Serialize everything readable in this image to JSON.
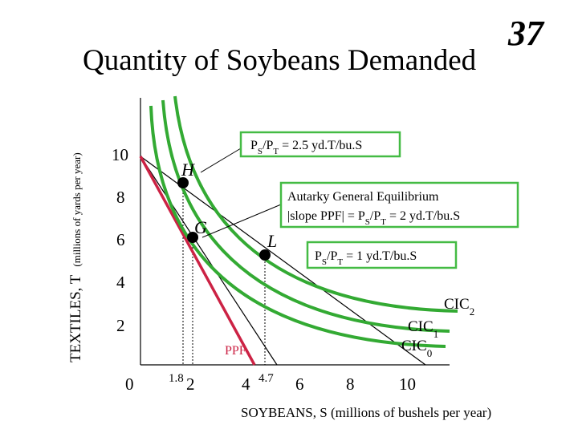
{
  "slide": {
    "title": "Quantity of Soybeans Demanded",
    "number": "37"
  },
  "axes": {
    "y_label_main": "TEXTILES, T",
    "y_label_unit": "(millions of yards per year)",
    "x_label": "SOYBEANS, S (millions of bushels per year)",
    "y_ticks": [
      "10",
      "8",
      "6",
      "4",
      "2",
      "0"
    ],
    "x_ticks": [
      "1.8",
      "2",
      "4",
      "4.7",
      "6",
      "8",
      "10"
    ]
  },
  "points": {
    "H": "H",
    "G": "G",
    "L": "L"
  },
  "boxes": {
    "ratio_high": {
      "prefix": "P",
      "sub1": "S",
      "mid": "/P",
      "sub2": "T",
      "rest": " = 2.5 yd.T/bu.S"
    },
    "autarky_line1": "Autarky General Equilibrium",
    "autarky_line2": {
      "prefix": "|slope PPF| = P",
      "sub1": "S",
      "mid": "/P",
      "sub2": "T",
      "rest": " = 2 yd.T/bu.S"
    },
    "ratio_low": {
      "prefix": "P",
      "sub1": "S",
      "mid": "/P",
      "sub2": "T",
      "rest": " = 1 yd.T/bu.S"
    }
  },
  "curves": {
    "cic2": {
      "base": "CIC",
      "sub": "2"
    },
    "cic1": {
      "base": "CIC",
      "sub": "1"
    },
    "cic0": {
      "base": "CIC",
      "sub": "0"
    },
    "ppf": "PPF"
  },
  "colors": {
    "cic": "#33aa33",
    "ppf": "#cc2244",
    "box_border": "#44bb44",
    "axis": "#000000"
  }
}
